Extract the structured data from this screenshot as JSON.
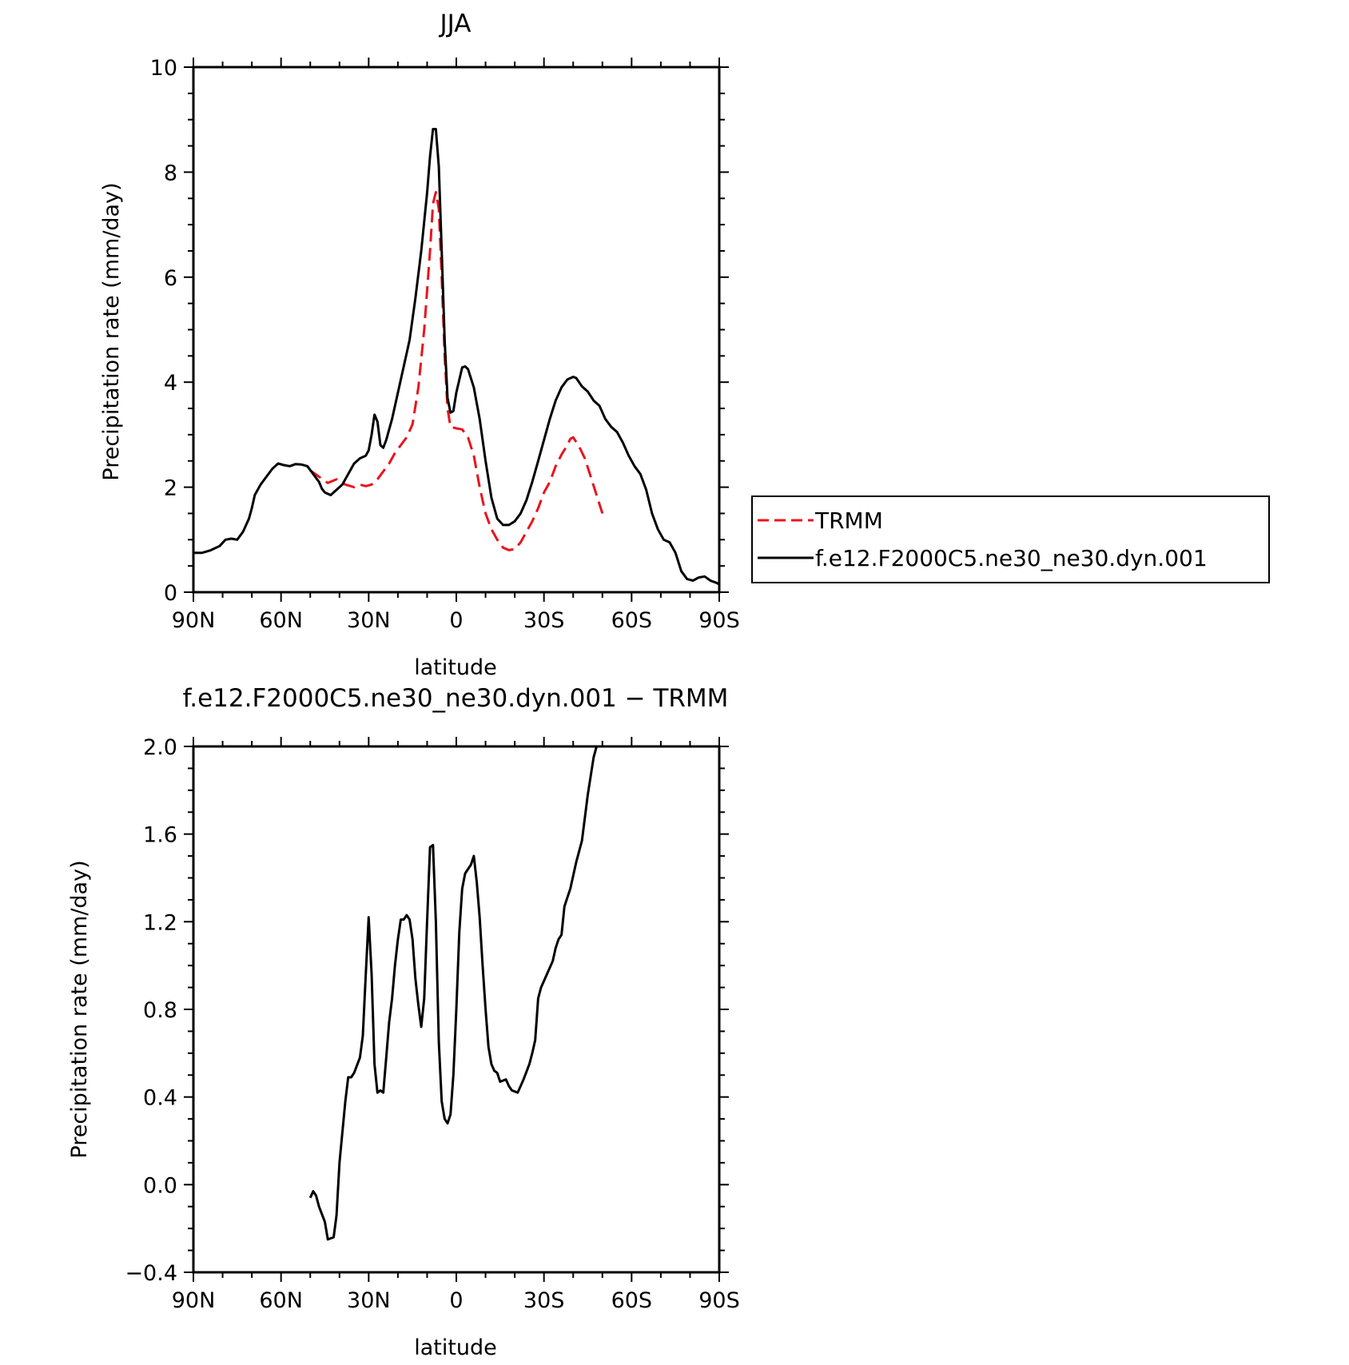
{
  "chart_data": [
    {
      "type": "line",
      "title": "JJA",
      "xlabel": "latitude",
      "ylabel": "Precipitation rate (mm/day)",
      "xlim": [
        90,
        -90
      ],
      "ylim": [
        0,
        10
      ],
      "xticks": [
        {
          "value": 90,
          "label": "90N"
        },
        {
          "value": 60,
          "label": "60N"
        },
        {
          "value": 30,
          "label": "30N"
        },
        {
          "value": 0,
          "label": "0"
        },
        {
          "value": -30,
          "label": "30S"
        },
        {
          "value": -60,
          "label": "60S"
        },
        {
          "value": -90,
          "label": "90S"
        }
      ],
      "yticks": [
        {
          "value": 0,
          "label": "0"
        },
        {
          "value": 2,
          "label": "2"
        },
        {
          "value": 4,
          "label": "4"
        },
        {
          "value": 6,
          "label": "6"
        },
        {
          "value": 8,
          "label": "8"
        },
        {
          "value": 10,
          "label": "10"
        }
      ],
      "grid": false,
      "legend_position": "right",
      "series": [
        {
          "name": "TRMM",
          "color": "#e8141c",
          "style": "dashed",
          "points": [
            [
              50,
              2.32
            ],
            [
              47,
              2.2
            ],
            [
              44,
              2.08
            ],
            [
              41,
              2.15
            ],
            [
              38,
              2.05
            ],
            [
              35,
              2.0
            ],
            [
              33,
              2.05
            ],
            [
              31,
              2.02
            ],
            [
              29,
              2.05
            ],
            [
              27,
              2.15
            ],
            [
              25,
              2.3
            ],
            [
              23,
              2.45
            ],
            [
              21,
              2.65
            ],
            [
              19,
              2.8
            ],
            [
              17,
              2.95
            ],
            [
              15,
              3.2
            ],
            [
              13,
              3.9
            ],
            [
              11,
              5.0
            ],
            [
              9,
              6.5
            ],
            [
              8,
              7.4
            ],
            [
              7,
              7.62
            ],
            [
              6,
              7.3
            ],
            [
              5,
              6.0
            ],
            [
              4,
              4.5
            ],
            [
              3,
              3.5
            ],
            [
              2,
              3.15
            ],
            [
              0,
              3.12
            ],
            [
              -2,
              3.1
            ],
            [
              -4,
              2.95
            ],
            [
              -6,
              2.6
            ],
            [
              -8,
              2.0
            ],
            [
              -10,
              1.5
            ],
            [
              -12,
              1.2
            ],
            [
              -14,
              1.0
            ],
            [
              -16,
              0.85
            ],
            [
              -18,
              0.8
            ],
            [
              -20,
              0.82
            ],
            [
              -22,
              0.95
            ],
            [
              -24,
              1.15
            ],
            [
              -26,
              1.35
            ],
            [
              -28,
              1.6
            ],
            [
              -30,
              1.9
            ],
            [
              -32,
              2.1
            ],
            [
              -34,
              2.4
            ],
            [
              -36,
              2.62
            ],
            [
              -38,
              2.8
            ],
            [
              -39,
              2.92
            ],
            [
              -40,
              2.95
            ],
            [
              -42,
              2.78
            ],
            [
              -44,
              2.55
            ],
            [
              -46,
              2.2
            ],
            [
              -48,
              1.85
            ],
            [
              -50,
              1.5
            ]
          ]
        },
        {
          "name": "f.e12.F2000C5.ne30_ne30.dyn.001",
          "color": "#000000",
          "style": "solid",
          "points": [
            [
              90,
              0.75
            ],
            [
              87,
              0.75
            ],
            [
              84,
              0.8
            ],
            [
              81,
              0.88
            ],
            [
              79,
              1.0
            ],
            [
              77,
              1.02
            ],
            [
              75,
              1.0
            ],
            [
              73,
              1.15
            ],
            [
              71,
              1.4
            ],
            [
              70,
              1.6
            ],
            [
              69,
              1.85
            ],
            [
              67,
              2.05
            ],
            [
              65,
              2.2
            ],
            [
              63,
              2.35
            ],
            [
              61,
              2.45
            ],
            [
              59,
              2.42
            ],
            [
              57,
              2.4
            ],
            [
              55,
              2.44
            ],
            [
              53,
              2.43
            ],
            [
              51,
              2.4
            ],
            [
              49,
              2.25
            ],
            [
              47,
              2.1
            ],
            [
              46,
              1.97
            ],
            [
              45,
              1.9
            ],
            [
              43,
              1.85
            ],
            [
              41,
              1.95
            ],
            [
              39,
              2.05
            ],
            [
              37,
              2.25
            ],
            [
              35,
              2.45
            ],
            [
              33,
              2.55
            ],
            [
              31,
              2.6
            ],
            [
              30,
              2.7
            ],
            [
              29,
              3.0
            ],
            [
              28,
              3.38
            ],
            [
              27,
              3.25
            ],
            [
              26,
              2.8
            ],
            [
              25,
              2.75
            ],
            [
              24,
              2.9
            ],
            [
              22,
              3.3
            ],
            [
              20,
              3.8
            ],
            [
              18,
              4.3
            ],
            [
              16,
              4.8
            ],
            [
              14,
              5.6
            ],
            [
              12,
              6.5
            ],
            [
              10,
              7.6
            ],
            [
              9,
              8.3
            ],
            [
              8,
              8.82
            ],
            [
              7,
              8.82
            ],
            [
              6,
              8.1
            ],
            [
              5,
              6.5
            ],
            [
              4,
              4.8
            ],
            [
              3,
              3.7
            ],
            [
              2,
              3.42
            ],
            [
              1,
              3.45
            ],
            [
              0,
              3.8
            ],
            [
              -2,
              4.28
            ],
            [
              -3,
              4.3
            ],
            [
              -4,
              4.25
            ],
            [
              -6,
              3.9
            ],
            [
              -8,
              3.3
            ],
            [
              -10,
              2.5
            ],
            [
              -12,
              1.8
            ],
            [
              -14,
              1.4
            ],
            [
              -16,
              1.28
            ],
            [
              -18,
              1.28
            ],
            [
              -20,
              1.35
            ],
            [
              -22,
              1.5
            ],
            [
              -24,
              1.75
            ],
            [
              -26,
              2.1
            ],
            [
              -28,
              2.5
            ],
            [
              -30,
              2.9
            ],
            [
              -32,
              3.3
            ],
            [
              -34,
              3.65
            ],
            [
              -36,
              3.9
            ],
            [
              -38,
              4.05
            ],
            [
              -40,
              4.1
            ],
            [
              -41,
              4.08
            ],
            [
              -43,
              3.92
            ],
            [
              -45,
              3.82
            ],
            [
              -47,
              3.65
            ],
            [
              -49,
              3.55
            ],
            [
              -51,
              3.3
            ],
            [
              -53,
              3.15
            ],
            [
              -55,
              3.05
            ],
            [
              -57,
              2.85
            ],
            [
              -59,
              2.6
            ],
            [
              -61,
              2.4
            ],
            [
              -63,
              2.25
            ],
            [
              -65,
              1.95
            ],
            [
              -67,
              1.5
            ],
            [
              -69,
              1.2
            ],
            [
              -71,
              1.0
            ],
            [
              -73,
              0.95
            ],
            [
              -75,
              0.75
            ],
            [
              -77,
              0.4
            ],
            [
              -79,
              0.25
            ],
            [
              -81,
              0.22
            ],
            [
              -83,
              0.28
            ],
            [
              -85,
              0.3
            ],
            [
              -87,
              0.22
            ],
            [
              -89,
              0.18
            ],
            [
              -90,
              0.15
            ]
          ]
        }
      ]
    },
    {
      "type": "line",
      "title": "f.e12.F2000C5.ne30_ne30.dyn.001 − TRMM",
      "xlabel": "latitude",
      "ylabel": "Precipitation rate (mm/day)",
      "xlim": [
        90,
        -90
      ],
      "ylim": [
        -0.4,
        2.0
      ],
      "xticks": [
        {
          "value": 90,
          "label": "90N"
        },
        {
          "value": 60,
          "label": "60N"
        },
        {
          "value": 30,
          "label": "30N"
        },
        {
          "value": 0,
          "label": "0"
        },
        {
          "value": -30,
          "label": "30S"
        },
        {
          "value": -60,
          "label": "60S"
        },
        {
          "value": -90,
          "label": "90S"
        }
      ],
      "yticks": [
        {
          "value": -0.4,
          "label": "−0.4"
        },
        {
          "value": 0.0,
          "label": "0.0"
        },
        {
          "value": 0.4,
          "label": "0.4"
        },
        {
          "value": 0.8,
          "label": "0.8"
        },
        {
          "value": 1.2,
          "label": "1.2"
        },
        {
          "value": 1.6,
          "label": "1.6"
        },
        {
          "value": 2.0,
          "label": "2.0"
        }
      ],
      "grid": false,
      "series": [
        {
          "color": "#000000",
          "style": "solid",
          "points": [
            [
              50,
              -0.06
            ],
            [
              49,
              -0.03
            ],
            [
              48,
              -0.05
            ],
            [
              47,
              -0.1
            ],
            [
              45,
              -0.17
            ],
            [
              44,
              -0.25
            ],
            [
              42,
              -0.24
            ],
            [
              41,
              -0.14
            ],
            [
              40,
              0.1
            ],
            [
              38,
              0.38
            ],
            [
              37,
              0.49
            ],
            [
              36,
              0.49
            ],
            [
              35,
              0.51
            ],
            [
              33,
              0.58
            ],
            [
              32,
              0.68
            ],
            [
              31,
              0.96
            ],
            [
              30,
              1.22
            ],
            [
              29,
              0.96
            ],
            [
              28,
              0.55
            ],
            [
              27,
              0.42
            ],
            [
              26,
              0.43
            ],
            [
              25,
              0.42
            ],
            [
              24,
              0.58
            ],
            [
              23,
              0.74
            ],
            [
              22,
              0.85
            ],
            [
              21,
              1.0
            ],
            [
              20,
              1.12
            ],
            [
              19,
              1.21
            ],
            [
              18,
              1.21
            ],
            [
              17,
              1.23
            ],
            [
              16,
              1.21
            ],
            [
              15,
              1.12
            ],
            [
              14,
              0.94
            ],
            [
              13,
              0.82
            ],
            [
              12,
              0.72
            ],
            [
              11,
              0.85
            ],
            [
              10,
              1.2
            ],
            [
              9,
              1.54
            ],
            [
              8,
              1.55
            ],
            [
              7,
              1.2
            ],
            [
              6,
              0.65
            ],
            [
              5,
              0.38
            ],
            [
              4,
              0.3
            ],
            [
              3,
              0.28
            ],
            [
              2,
              0.32
            ],
            [
              1,
              0.5
            ],
            [
              0,
              0.8
            ],
            [
              -1,
              1.15
            ],
            [
              -2,
              1.35
            ],
            [
              -3,
              1.42
            ],
            [
              -4,
              1.44
            ],
            [
              -5,
              1.46
            ],
            [
              -6,
              1.5
            ],
            [
              -7,
              1.38
            ],
            [
              -8,
              1.22
            ],
            [
              -9,
              1.0
            ],
            [
              -10,
              0.8
            ],
            [
              -11,
              0.63
            ],
            [
              -12,
              0.55
            ],
            [
              -13,
              0.52
            ],
            [
              -14,
              0.51
            ],
            [
              -15,
              0.47
            ],
            [
              -17,
              0.48
            ],
            [
              -18,
              0.45
            ],
            [
              -19,
              0.43
            ],
            [
              -21,
              0.42
            ],
            [
              -23,
              0.48
            ],
            [
              -25,
              0.55
            ],
            [
              -26,
              0.6
            ],
            [
              -27,
              0.66
            ],
            [
              -28,
              0.85
            ],
            [
              -29,
              0.9
            ],
            [
              -30,
              0.93
            ],
            [
              -31,
              0.96
            ],
            [
              -33,
              1.02
            ],
            [
              -34,
              1.08
            ],
            [
              -35,
              1.12
            ],
            [
              -36,
              1.14
            ],
            [
              -37,
              1.27
            ],
            [
              -38,
              1.31
            ],
            [
              -39,
              1.35
            ],
            [
              -41,
              1.47
            ],
            [
              -43,
              1.57
            ],
            [
              -45,
              1.78
            ],
            [
              -47,
              1.95
            ],
            [
              -48,
              2.0
            ]
          ]
        }
      ]
    }
  ]
}
